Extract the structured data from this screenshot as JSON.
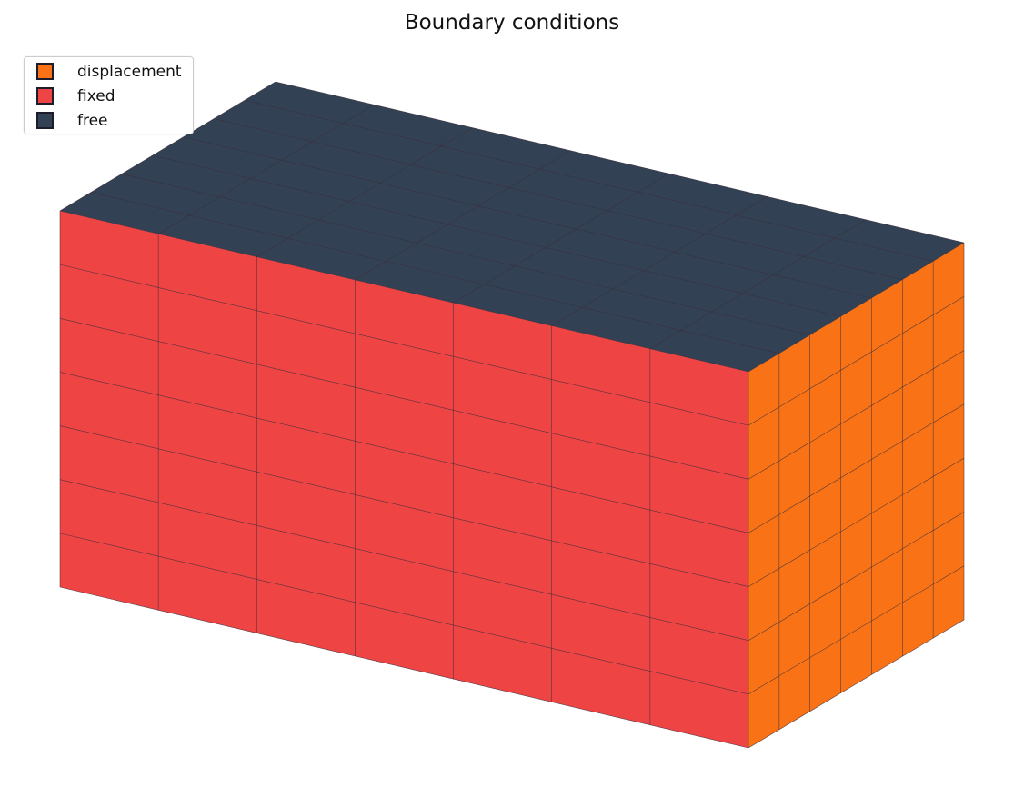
{
  "title": "Boundary conditions",
  "legend": [
    {
      "label": "displacement",
      "color": "#f97316"
    },
    {
      "label": "fixed",
      "color": "#ef4444"
    },
    {
      "label": "free",
      "color": "#334155"
    }
  ],
  "faces": {
    "front": {
      "condition": "fixed",
      "color": "#ef4444"
    },
    "side": {
      "condition": "displacement",
      "color": "#f97316"
    },
    "top": {
      "condition": "free",
      "color": "#334155"
    }
  },
  "mesh_divisions": {
    "length": 7,
    "height": 7,
    "depth": 7
  },
  "grid_line_color": "#3b2f3a"
}
